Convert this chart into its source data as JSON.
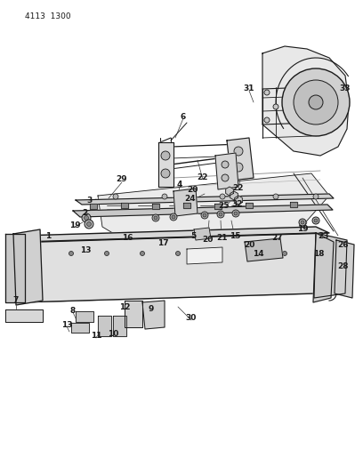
{
  "page_code": "4113  1300",
  "bg": "#f5f5f0",
  "lc": "#1a1a1a",
  "tc": "#1a1a1a",
  "fig_w": 4.08,
  "fig_h": 5.33,
  "dpi": 100
}
